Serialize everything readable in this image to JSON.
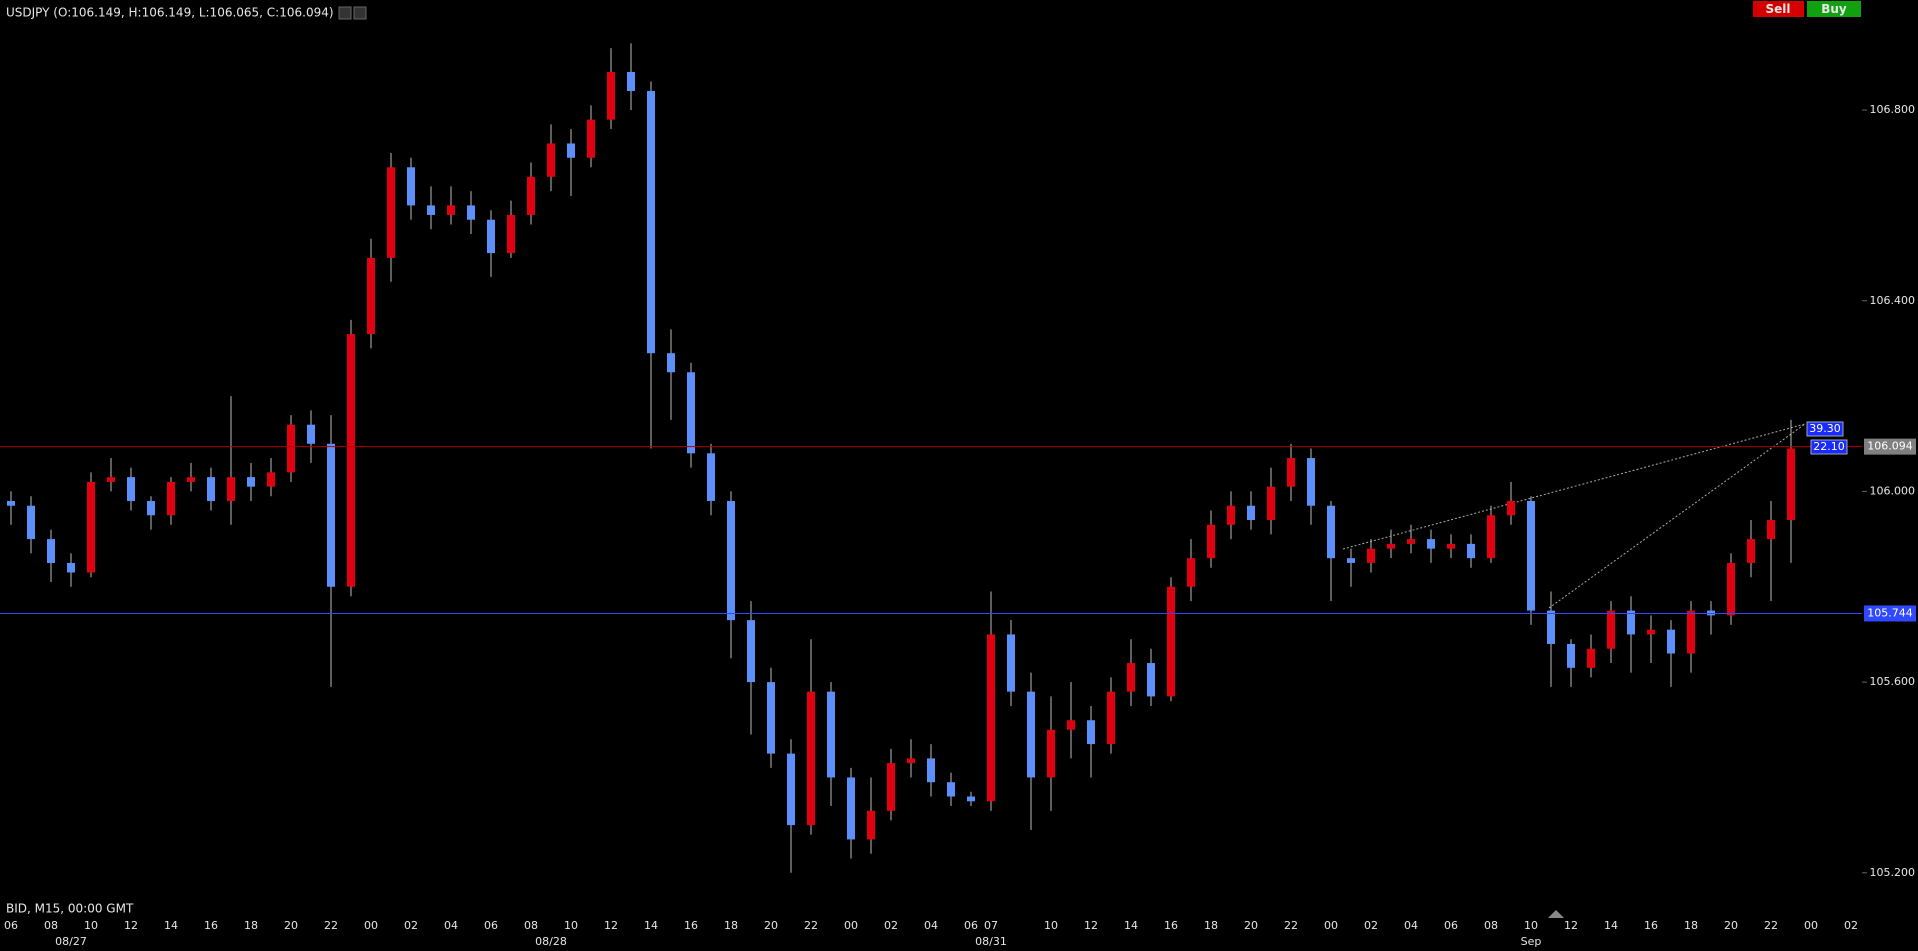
{
  "buttons": [
    "Sell",
    "Buy"
  ],
  "chart_data": {
    "type": "candlestick",
    "title": "USDJPY (O:106.149, H:106.149, L:106.065, C:106.094)",
    "subtitle": "BID, M15, 00:00 GMT",
    "up_color": "#e00010",
    "down_color": "#5b8ff9",
    "categories": [
      "06",
      null,
      "08",
      null,
      "10",
      null,
      "12",
      null,
      "14",
      null,
      "16",
      null,
      "18",
      null,
      "20",
      null,
      "22",
      null,
      "00",
      null,
      "02",
      null,
      "04",
      null,
      "06",
      null,
      "08",
      null,
      "10",
      null,
      "12",
      null,
      "14",
      null,
      "16",
      null,
      "18",
      null,
      "20",
      null,
      "22",
      null,
      "00",
      null,
      "02",
      null,
      "04",
      null,
      "06",
      "07",
      null,
      null,
      "10",
      null,
      "12",
      null,
      "14",
      null,
      "16",
      null,
      "18",
      null,
      "20",
      null,
      "22",
      null,
      "00",
      null,
      "02",
      null,
      "04",
      null,
      "06",
      null,
      "08",
      null,
      "10",
      null,
      "12",
      null,
      "14",
      null,
      "16",
      null,
      "18",
      null,
      "20",
      null,
      "22",
      null,
      "00",
      null,
      "02"
    ],
    "dates": [
      null,
      null,
      null,
      "08/27",
      null,
      null,
      null,
      null,
      null,
      null,
      null,
      null,
      null,
      null,
      null,
      null,
      null,
      null,
      null,
      null,
      null,
      null,
      null,
      null,
      null,
      null,
      null,
      "08/28",
      null,
      null,
      null,
      null,
      null,
      null,
      null,
      null,
      null,
      null,
      null,
      null,
      null,
      null,
      null,
      null,
      null,
      null,
      null,
      null,
      null,
      "08/31",
      null,
      null,
      null,
      null,
      null,
      null,
      null,
      null,
      null,
      null,
      null,
      null,
      null,
      null,
      null,
      null,
      null,
      null,
      null,
      null,
      null,
      null,
      null,
      null,
      null,
      null,
      "Sep",
      null,
      null,
      null,
      null,
      null,
      null,
      null,
      null,
      null,
      null,
      null,
      null,
      null,
      null,
      null,
      null
    ],
    "open": [
      105.98,
      105.97,
      105.9,
      105.85,
      105.83,
      106.02,
      106.03,
      105.98,
      105.95,
      106.02,
      106.03,
      105.98,
      106.03,
      106.01,
      106.04,
      106.14,
      106.1,
      105.8,
      106.33,
      106.49,
      106.68,
      106.6,
      106.58,
      106.6,
      106.57,
      106.5,
      106.58,
      106.66,
      106.73,
      106.7,
      106.78,
      106.88,
      106.84,
      106.29,
      106.25,
      106.08,
      105.98,
      105.73,
      105.6,
      105.45,
      105.3,
      105.58,
      105.4,
      105.27,
      105.33,
      105.43,
      105.44,
      105.39,
      105.36,
      105.35,
      105.7,
      105.58,
      105.4,
      105.5,
      105.52,
      105.47,
      105.58,
      105.64,
      105.57,
      105.8,
      105.86,
      105.93,
      105.97,
      105.94,
      106.01,
      106.07,
      105.97,
      105.86,
      105.85,
      105.88,
      105.89,
      105.9,
      105.88,
      105.89,
      105.86,
      105.95,
      105.98,
      105.75,
      105.68,
      105.63,
      105.67,
      105.75,
      105.7,
      105.71,
      105.66,
      105.75,
      105.74,
      105.85,
      105.9,
      105.94,
      null,
      null,
      null
    ],
    "high": [
      106.0,
      105.99,
      105.92,
      105.87,
      106.04,
      106.07,
      106.05,
      105.99,
      106.03,
      106.06,
      106.05,
      106.2,
      106.06,
      106.07,
      106.16,
      106.17,
      106.16,
      106.36,
      106.53,
      106.71,
      106.7,
      106.64,
      106.64,
      106.63,
      106.59,
      106.61,
      106.69,
      106.77,
      106.76,
      106.81,
      106.93,
      106.94,
      106.86,
      106.34,
      106.27,
      106.1,
      106.0,
      105.77,
      105.63,
      105.48,
      105.69,
      105.6,
      105.42,
      105.4,
      105.46,
      105.48,
      105.47,
      105.41,
      105.37,
      105.79,
      105.73,
      105.62,
      105.57,
      105.6,
      105.55,
      105.61,
      105.69,
      105.67,
      105.82,
      105.9,
      105.96,
      106.0,
      106.0,
      106.05,
      106.1,
      106.09,
      105.98,
      105.88,
      105.9,
      105.92,
      105.93,
      105.92,
      105.91,
      105.91,
      105.97,
      106.02,
      105.99,
      105.79,
      105.69,
      105.7,
      105.77,
      105.78,
      105.74,
      105.73,
      105.77,
      105.77,
      105.87,
      105.94,
      105.98,
      106.15,
      null,
      null,
      null
    ],
    "low": [
      105.93,
      105.87,
      105.81,
      105.8,
      105.82,
      106.0,
      105.96,
      105.92,
      105.93,
      106.0,
      105.96,
      105.93,
      105.98,
      105.99,
      106.02,
      106.06,
      105.59,
      105.78,
      106.3,
      106.44,
      106.57,
      106.55,
      106.56,
      106.54,
      106.45,
      106.49,
      106.56,
      106.63,
      106.62,
      106.68,
      106.76,
      106.8,
      106.09,
      106.15,
      106.05,
      105.95,
      105.65,
      105.49,
      105.42,
      105.2,
      105.28,
      105.34,
      105.23,
      105.24,
      105.31,
      105.4,
      105.36,
      105.34,
      105.34,
      105.33,
      105.55,
      105.29,
      105.33,
      105.44,
      105.4,
      105.45,
      105.55,
      105.55,
      105.56,
      105.77,
      105.84,
      105.9,
      105.92,
      105.91,
      105.98,
      105.93,
      105.77,
      105.8,
      105.83,
      105.86,
      105.87,
      105.85,
      105.86,
      105.84,
      105.85,
      105.93,
      105.72,
      105.59,
      105.59,
      105.61,
      105.64,
      105.62,
      105.64,
      105.59,
      105.62,
      105.7,
      105.72,
      105.82,
      105.77,
      105.85,
      null,
      null,
      null
    ],
    "close": [
      105.97,
      105.9,
      105.85,
      105.83,
      106.02,
      106.03,
      105.98,
      105.95,
      106.02,
      106.03,
      105.98,
      106.03,
      106.01,
      106.04,
      106.14,
      106.1,
      105.8,
      106.33,
      106.49,
      106.68,
      106.6,
      106.58,
      106.6,
      106.57,
      106.5,
      106.58,
      106.66,
      106.73,
      106.7,
      106.78,
      106.88,
      106.84,
      106.29,
      106.25,
      106.08,
      105.98,
      105.73,
      105.6,
      105.45,
      105.3,
      105.58,
      105.4,
      105.27,
      105.33,
      105.43,
      105.44,
      105.39,
      105.36,
      105.35,
      105.7,
      105.58,
      105.4,
      105.5,
      105.52,
      105.47,
      105.58,
      105.64,
      105.57,
      105.8,
      105.86,
      105.93,
      105.97,
      105.94,
      106.01,
      106.07,
      105.97,
      105.86,
      105.85,
      105.88,
      105.89,
      105.9,
      105.88,
      105.89,
      105.86,
      105.95,
      105.98,
      105.75,
      105.68,
      105.63,
      105.67,
      105.75,
      105.7,
      105.71,
      105.66,
      105.75,
      105.74,
      105.85,
      105.9,
      105.94,
      106.09,
      null,
      null,
      null
    ],
    "ylim": [
      105.145,
      106.968
    ],
    "yticks": [
      {
        "value": 105.2,
        "label": "105.200"
      },
      {
        "value": 105.6,
        "label": "105.600"
      },
      {
        "value": 106.0,
        "label": "106.000"
      },
      {
        "value": 106.4,
        "label": "106.400"
      },
      {
        "value": 106.8,
        "label": "106.800"
      }
    ],
    "price_lines": [
      {
        "value": 106.094,
        "label": "106.094",
        "color": "#b00000",
        "label_color": "#7f7f7f"
      },
      {
        "value": 105.744,
        "label": "105.744",
        "color": "#3048ff",
        "label_color": "#3048ff"
      }
    ],
    "annotations": [
      "39.30",
      "22.10"
    ]
  }
}
